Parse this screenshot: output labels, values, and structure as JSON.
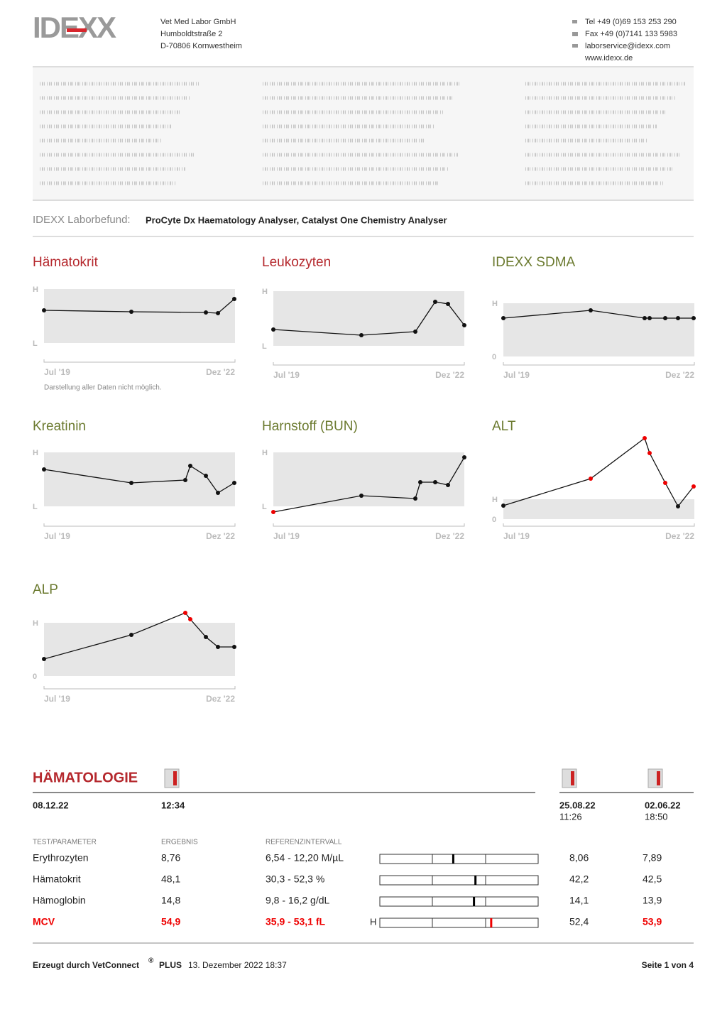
{
  "header": {
    "logo": "IDEXX",
    "company": [
      "Vet Med Labor GmbH",
      "Humboldtstraße 2",
      "D-70806 Kornwestheim"
    ],
    "contact": [
      "Tel +49 (0)69 153 253 290",
      "Fax +49 (0)7141 133 5983",
      "laborservice@idexx.com",
      "www.idexx.de"
    ]
  },
  "report": {
    "label": "IDEXX Laborbefund:",
    "analysers": "ProCyte Dx Haematology Analyser, Catalyst One Chemistry Analyser"
  },
  "trends": [
    {
      "title": "Hämatokrit",
      "color": "#b5282d",
      "high": "H",
      "low": "L",
      "start": "Jul '19",
      "end": "Dez '22",
      "note": "Darstellung aller Daten nicht möglich."
    },
    {
      "title": "Leukozyten",
      "color": "#b5282d",
      "high": "H",
      "low": "L",
      "start": "Jul '19",
      "end": "Dez '22"
    },
    {
      "title": "IDEXX SDMA",
      "color": "#6b7a2f",
      "high": "H",
      "low": "0",
      "start": "Jul '19",
      "end": "Dez '22"
    },
    {
      "title": "Kreatinin",
      "color": "#6b7a2f",
      "high": "H",
      "low": "L",
      "start": "Jul '19",
      "end": "Dez '22"
    },
    {
      "title": "Harnstoff (BUN)",
      "color": "#6b7a2f",
      "high": "H",
      "low": "L",
      "start": "Jul '19",
      "end": "Dez '22"
    },
    {
      "title": "ALT",
      "color": "#6b7a2f",
      "high": "H",
      "low": "0",
      "start": "Jul '19",
      "end": "Dez '22"
    },
    {
      "title": "ALP",
      "color": "#6b7a2f",
      "high": "H",
      "low": "0",
      "start": "Jul '19",
      "end": "Dez '22"
    }
  ],
  "haematology": {
    "title": "HÄMATOLOGIE",
    "date": "08.12.22",
    "time": "12:34",
    "previous": [
      {
        "date": "25.08.22",
        "time": "11:26"
      },
      {
        "date": "02.06.22",
        "time": "18:50"
      }
    ],
    "columns": [
      "TEST/PARAMETER",
      "ERGEBNIS",
      "REFERENZINTERVALL"
    ],
    "rows": [
      {
        "test": "Erythrozyten",
        "result": "8,76",
        "reference": "6,54 - 12,20 M/µL",
        "previous": [
          "8,06",
          "7,89"
        ],
        "abnormal": false,
        "previous_abnormal": [
          false,
          false
        ]
      },
      {
        "test": "Hämatokrit",
        "result": "48,1",
        "reference": "30,3 - 52,3 %",
        "previous": [
          "42,2",
          "42,5"
        ],
        "abnormal": false,
        "previous_abnormal": [
          false,
          false
        ]
      },
      {
        "test": "Hämoglobin",
        "result": "14,8",
        "reference": "9,8 - 16,2 g/dL",
        "previous": [
          "14,1",
          "13,9"
        ],
        "abnormal": false,
        "previous_abnormal": [
          false,
          false
        ]
      },
      {
        "test": "MCV",
        "result": "54,9",
        "reference": "35,9 - 53,1 fL",
        "flag": "H",
        "previous": [
          "52,4",
          "53,9"
        ],
        "abnormal": true,
        "previous_abnormal": [
          false,
          true
        ]
      }
    ]
  },
  "footer": {
    "generated": "Erzeugt durch VetConnect",
    "reg": "®",
    "product": "PLUS",
    "datetime": "13. Dezember 2022 18:37",
    "page": "Seite 1 von 4"
  }
}
